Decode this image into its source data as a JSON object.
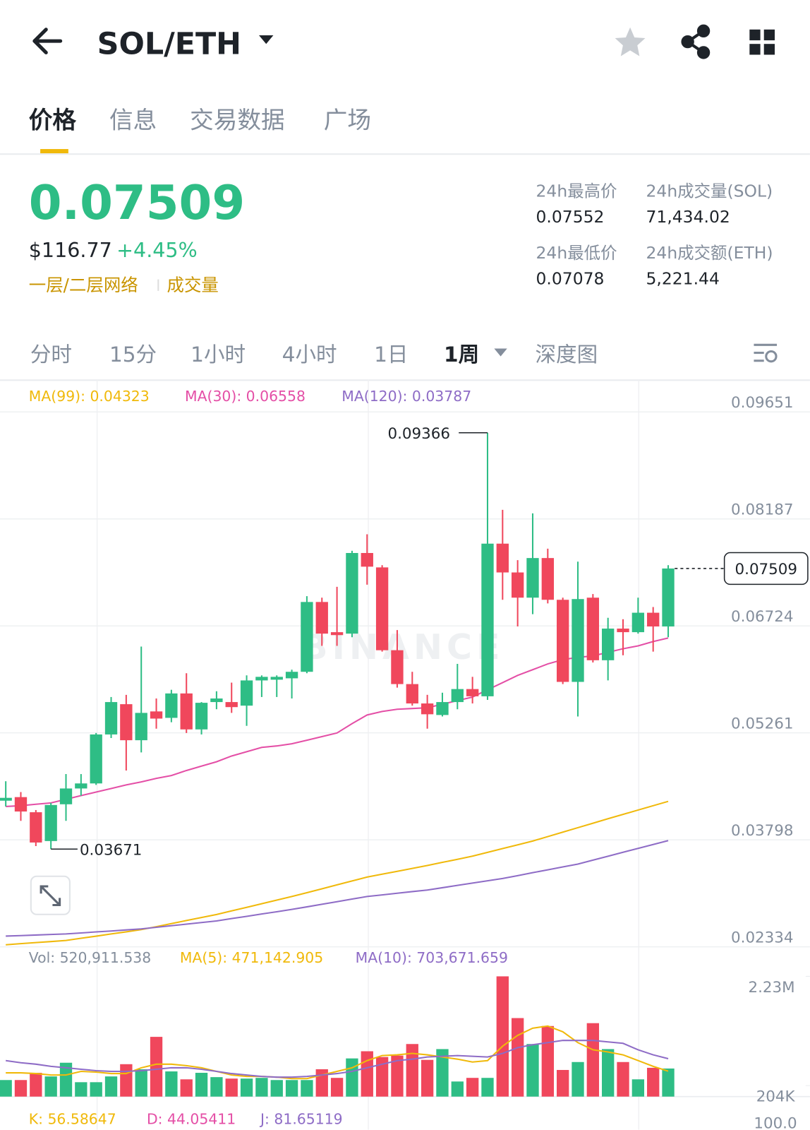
{
  "header": {
    "pair": "SOL/ETH"
  },
  "tabs": [
    "价格",
    "信息",
    "交易数据",
    "广场"
  ],
  "summary": {
    "price": "0.07509",
    "usd": "$116.77",
    "change": "+4.45%",
    "tags": [
      "一层/二层网络",
      "成交量"
    ]
  },
  "stats": [
    {
      "label": "24h最高价",
      "value": "0.07552"
    },
    {
      "label": "24h成交量(SOL)",
      "value": "71,434.02"
    },
    {
      "label": "24h最低价",
      "value": "0.07078"
    },
    {
      "label": "24h成交额(ETH)",
      "value": "5,221.44"
    }
  ],
  "timeframes": [
    "分时",
    "15分",
    "1小时",
    "4小时",
    "1日",
    "1周",
    "深度图"
  ],
  "chart_data": {
    "type": "candlestick",
    "watermark": "BINANCE",
    "up_color": "#2ebd85",
    "down_color": "#f0475c",
    "ylim": [
      0.02334,
      0.10085
    ],
    "yticks": [
      0.09651,
      0.08187,
      0.06724,
      0.05261,
      0.03798,
      0.02334
    ],
    "grid": true,
    "last_price": 0.07509,
    "max_label": 0.09366,
    "min_label": 0.03671,
    "open": [
      0.04333,
      0.04382,
      0.04175,
      0.03781,
      0.04284,
      0.045,
      0.04569,
      0.05239,
      0.05653,
      0.0516,
      0.05554,
      0.05466,
      0.058,
      0.05308,
      0.05682,
      0.05682,
      0.05633,
      0.05978,
      0.05988,
      0.06007,
      0.06096,
      0.07051,
      0.06638,
      0.06618,
      0.07721,
      0.07524,
      0.06391,
      0.05928,
      0.05663,
      0.05505,
      0.05682,
      0.0586,
      0.05761,
      0.07849,
      0.07455,
      0.0711,
      0.07652,
      0.07081,
      0.05958,
      0.0711,
      0.06254,
      0.06687,
      0.06638,
      0.06904,
      0.06716
    ],
    "high": [
      0.04599,
      0.04451,
      0.04205,
      0.04303,
      0.04697,
      0.04697,
      0.05259,
      0.05751,
      0.05781,
      0.06441,
      0.05731,
      0.0585,
      0.06076,
      0.05682,
      0.0583,
      0.05948,
      0.06047,
      0.06047,
      0.06047,
      0.06125,
      0.0713,
      0.0711,
      0.07258,
      0.07751,
      0.07977,
      0.07554,
      0.06667,
      0.06096,
      0.05781,
      0.0581,
      0.06204,
      0.06027,
      0.09366,
      0.08312,
      0.07623,
      0.08263,
      0.0778,
      0.0711,
      0.07603,
      0.0716,
      0.06835,
      0.06815,
      0.0711,
      0.06982,
      0.07554
    ],
    "low": [
      0.04254,
      0.04057,
      0.03712,
      0.03671,
      0.04057,
      0.04402,
      0.04549,
      0.0519,
      0.04746,
      0.04993,
      0.05318,
      0.05406,
      0.05259,
      0.05239,
      0.05584,
      0.05534,
      0.05357,
      0.05751,
      0.05751,
      0.05731,
      0.06076,
      0.06451,
      0.06451,
      0.06569,
      0.07288,
      0.06372,
      0.05879,
      0.05633,
      0.05318,
      0.05485,
      0.05584,
      0.05663,
      0.05712,
      0.07081,
      0.06716,
      0.06884,
      0.07032,
      0.05928,
      0.05485,
      0.06224,
      0.05978,
      0.06322,
      0.06618,
      0.06372,
      0.06569
    ],
    "close": [
      0.04372,
      0.04185,
      0.03761,
      0.04274,
      0.045,
      0.04569,
      0.05239,
      0.05682,
      0.0516,
      0.05534,
      0.05456,
      0.058,
      0.05308,
      0.05672,
      0.05731,
      0.05613,
      0.05978,
      0.06027,
      0.06027,
      0.06096,
      0.07051,
      0.06618,
      0.06598,
      0.07721,
      0.07534,
      0.06391,
      0.05928,
      0.05663,
      0.05515,
      0.05682,
      0.0586,
      0.05761,
      0.07849,
      0.07455,
      0.0711,
      0.07652,
      0.07081,
      0.05958,
      0.07091,
      0.06254,
      0.06687,
      0.06638,
      0.06904,
      0.06716,
      0.07509
    ],
    "series": [
      {
        "label": "MA(99): 0.04323",
        "color": "#f0b90b",
        "values": [
          0.02362,
          0.02377,
          0.02392,
          0.02406,
          0.02421,
          0.02451,
          0.0248,
          0.0251,
          0.02539,
          0.02569,
          0.0261,
          0.02652,
          0.02693,
          0.02735,
          0.02776,
          0.02825,
          0.02874,
          0.02924,
          0.02973,
          0.03022,
          0.03075,
          0.03128,
          0.03182,
          0.03235,
          0.03288,
          0.03328,
          0.03367,
          0.03407,
          0.03446,
          0.03489,
          0.03531,
          0.03574,
          0.03626,
          0.03678,
          0.03729,
          0.03781,
          0.03842,
          0.03903,
          0.03964,
          0.04025,
          0.04086,
          0.04145,
          0.04205,
          0.04264,
          0.04323
        ]
      },
      {
        "label": "MA(30): 0.06558",
        "color": "#e44fa6",
        "values": [
          0.04254,
          0.04264,
          0.04284,
          0.04303,
          0.04352,
          0.04402,
          0.04451,
          0.045,
          0.04549,
          0.04589,
          0.04638,
          0.04677,
          0.04746,
          0.04806,
          0.04865,
          0.04944,
          0.05003,
          0.05062,
          0.05082,
          0.05111,
          0.0516,
          0.0521,
          0.05259,
          0.05387,
          0.05505,
          0.05554,
          0.05584,
          0.05594,
          0.05604,
          0.05653,
          0.05702,
          0.05751,
          0.0585,
          0.05948,
          0.06047,
          0.06125,
          0.06204,
          0.06263,
          0.06293,
          0.06313,
          0.06362,
          0.06411,
          0.06451,
          0.0651,
          0.06558
        ]
      },
      {
        "label": "MA(120): 0.03787",
        "color": "#8e6cc6",
        "values": [
          0.02481,
          0.02488,
          0.02496,
          0.02503,
          0.0251,
          0.02524,
          0.02538,
          0.02551,
          0.02565,
          0.02579,
          0.02601,
          0.02623,
          0.02644,
          0.02666,
          0.02688,
          0.0272,
          0.02751,
          0.02783,
          0.02814,
          0.02846,
          0.02881,
          0.02916,
          0.02952,
          0.02987,
          0.03022,
          0.03044,
          0.03067,
          0.03089,
          0.03111,
          0.03143,
          0.03174,
          0.03206,
          0.03237,
          0.03269,
          0.03308,
          0.03348,
          0.03387,
          0.03427,
          0.03466,
          0.0352,
          0.03573,
          0.03627,
          0.0368,
          0.03734,
          0.03787
        ]
      }
    ],
    "volume": {
      "label": "Vol: 520,911.538",
      "ylim": [
        0,
        2230000
      ],
      "yticks": [
        {
          "value": 2230000,
          "label": "2.23M"
        },
        {
          "value": 204000,
          "label": "204K"
        }
      ],
      "values": [
        307000,
        307000,
        441000,
        374000,
        628000,
        267000,
        267000,
        374000,
        601000,
        507000,
        1108000,
        467000,
        320000,
        441000,
        361000,
        334000,
        334000,
        347000,
        307000,
        307000,
        307000,
        507000,
        347000,
        708000,
        841000,
        734000,
        761000,
        975000,
        681000,
        881000,
        280000,
        347000,
        347000,
        2230000,
        1456000,
        975000,
        1309000,
        494000,
        641000,
        1362000,
        881000,
        641000,
        320000,
        534000,
        520911.538
      ],
      "series": [
        {
          "label": "MA(5): 471,142.905",
          "color": "#f0b90b",
          "values": [
            441000,
            441000,
            427000,
            401000,
            401000,
            467000,
            454000,
            427000,
            427000,
            534000,
            601000,
            601000,
            574000,
            534000,
            467000,
            401000,
            374000,
            374000,
            361000,
            334000,
            334000,
            401000,
            467000,
            534000,
            668000,
            761000,
            775000,
            801000,
            775000,
            734000,
            694000,
            641000,
            668000,
            935000,
            1135000,
            1269000,
            1309000,
            1202000,
            1002000,
            868000,
            828000,
            775000,
            668000,
            561000,
            471142.905
          ]
        },
        {
          "label": "MA(10): 703,671.659",
          "color": "#8e6cc6",
          "values": [
            668000,
            628000,
            601000,
            561000,
            534000,
            507000,
            481000,
            467000,
            467000,
            481000,
            507000,
            534000,
            534000,
            507000,
            467000,
            427000,
            401000,
            374000,
            361000,
            361000,
            374000,
            401000,
            427000,
            467000,
            534000,
            601000,
            668000,
            694000,
            734000,
            748000,
            761000,
            748000,
            734000,
            801000,
            908000,
            961000,
            1002000,
            1042000,
            1042000,
            1042000,
            1015000,
            988000,
            868000,
            775000,
            703671.659
          ]
        }
      ]
    },
    "kdj_labels": [
      {
        "text": "K: 56.58647",
        "color": "#f0b90b"
      },
      {
        "text": "D: 44.05411",
        "color": "#e44fa6"
      },
      {
        "text": "J: 81.65119",
        "color": "#8e6cc6"
      }
    ],
    "kdj_axis_label": "100.0"
  }
}
